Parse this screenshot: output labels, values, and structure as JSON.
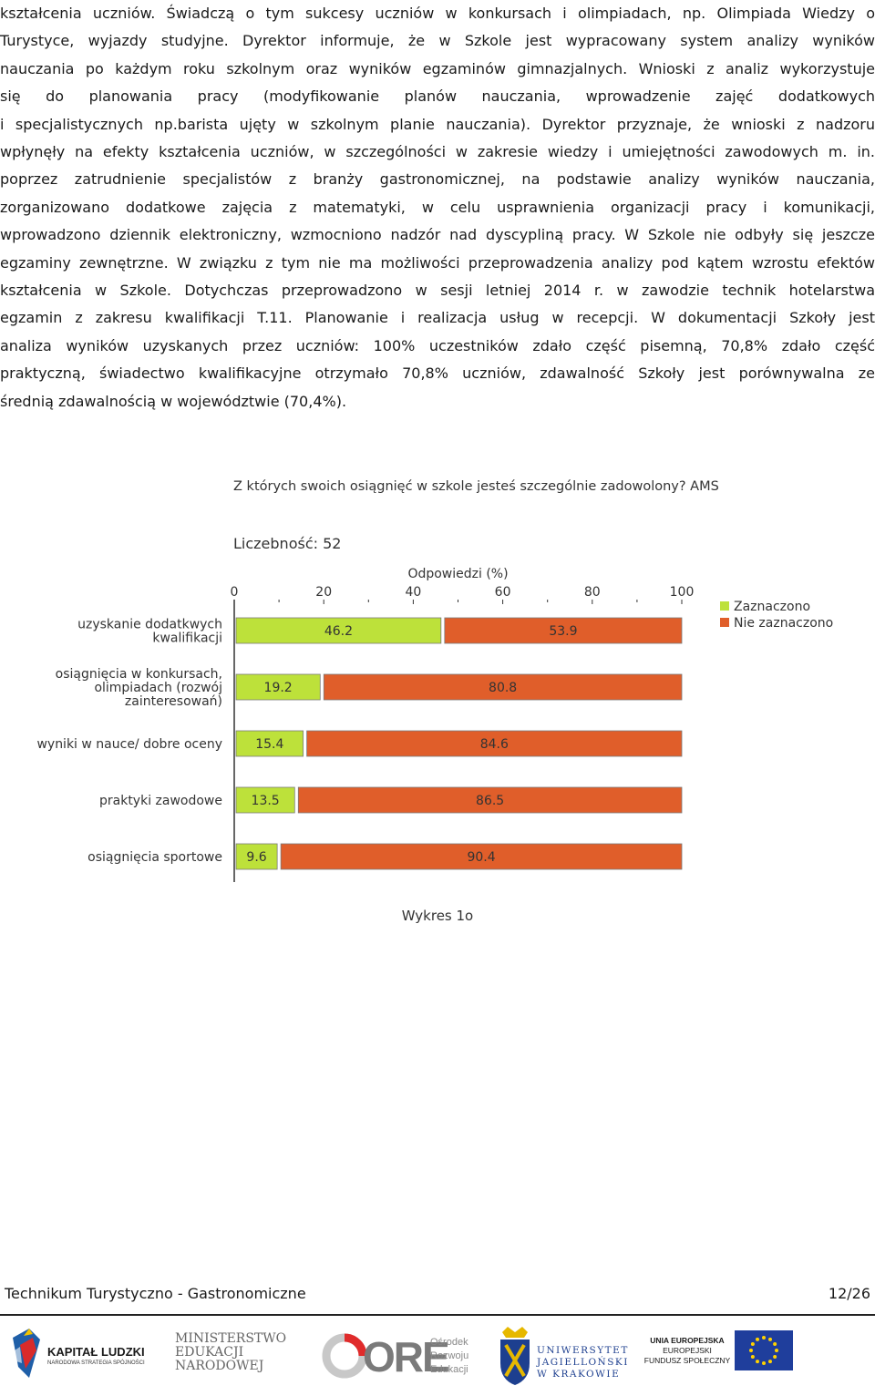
{
  "paragraph_lines": [
    "kształcenia uczniów. Świadczą o tym sukcesy uczniów w konkursach i olimpiadach, np. Olimpiada Wiedzy o",
    "Turystyce, wyjazdy studyjne. Dyrektor informuje, że w Szkole jest wypracowany system analizy wyników",
    "nauczania po każdym roku szkolnym oraz wyników egzaminów gimnazjalnych. Wnioski z analiz wykorzystuje",
    "się do planowania pracy (modyfikowanie planów nauczania, wprowadzenie zajęć dodatkowych",
    "i specjalistycznych np.barista ujęty w szkolnym planie nauczania). Dyrektor przyznaje, że wnioski z nadzoru",
    "wpłynęły na efekty kształcenia uczniów, w szczególności w zakresie wiedzy i umiejętności zawodowych m. in.",
    "poprzez zatrudnienie specjalistów z branży gastronomicznej, na podstawie analizy wyników nauczania,",
    "zorganizowano dodatkowe zajęcia z matematyki, w celu usprawnienia organizacji pracy i komunikacji,",
    "wprowadzono dziennik elektroniczny, wzmocniono nadzór nad dyscypliną pracy. W Szkole nie odbyły się jeszcze",
    "egzaminy zewnętrzne. W związku z tym nie ma możliwości przeprowadzenia analizy pod kątem wzrostu efektów",
    "kształcenia w Szkole. Dotychczas przeprowadzono w sesji letniej 2014 r. w zawodzie technik hotelarstwa",
    "egzamin z zakresu kwalifikacji T.11. Planowanie i realizacja usług w recepcji. W dokumentacji Szkoły jest",
    "analiza wyników uzyskanych przez uczniów: 100% uczestników zdało część pisemną, 70,8% zdało część",
    "praktyczną, świadectwo kwalifikacyjne otrzymało 70,8% uczniów, zdawalność Szkoły jest porównywalna ze",
    "średnią zdawalnością w województwie (70,4%)."
  ],
  "chart_data": {
    "type": "bar",
    "orientation": "horizontal",
    "stacked": true,
    "title": "Z których swoich osiągnięć w szkole jesteś szczególnie zadowolony? AMS",
    "subtitle": "Liczebność: 52",
    "xlabel": "Odpowiedzi (%)",
    "xlim": [
      0,
      100
    ],
    "xticks": [
      0,
      20,
      40,
      60,
      80,
      100
    ],
    "legend_position": "right",
    "categories": [
      [
        "uzyskanie dodatkwych",
        "kwalifikacji"
      ],
      [
        "osiągnięcia w konkursach,",
        "olimpiadach (rozwój",
        "zainteresowań)"
      ],
      [
        "wyniki w nauce/ dobre oceny"
      ],
      [
        "praktyki zawodowe"
      ],
      [
        "osiągnięcia sportowe"
      ]
    ],
    "series": [
      {
        "name": "Zaznaczono",
        "color": "#bde13a",
        "values": [
          46.2,
          19.2,
          15.4,
          13.5,
          9.6
        ]
      },
      {
        "name": "Nie zaznaczono",
        "color": "#e05e2a",
        "values": [
          53.9,
          80.8,
          84.6,
          86.5,
          90.4
        ]
      }
    ]
  },
  "caption": "Wykres 1o",
  "footer": {
    "school_name": "Technikum Turystyczno - Gastronomiczne",
    "page_number": "12/26"
  },
  "logos": {
    "kapital_ludzki": {
      "line1": "KAPITAŁ LUDZKI",
      "line2": "NARODOWA STRATEGIA SPÓJNOŚCI"
    },
    "men": {
      "line1": "MINISTERSTWO",
      "line2": "EDUKACJI",
      "line3": "NARODOWEJ"
    },
    "ore": {
      "mark": "ORE",
      "line1": "Ośrodek",
      "line2": "Rozwoju",
      "line3": "Edukacji"
    },
    "uj": {
      "line1": "UNIWERSYTET",
      "line2": "JAGIELLOŃSKI",
      "line3": "W KRAKOWIE"
    },
    "ue": {
      "line1": "UNIA EUROPEJSKA",
      "line2": "EUROPEJSKI",
      "line3": "FUNDUSZ SPOŁECZNY"
    }
  }
}
